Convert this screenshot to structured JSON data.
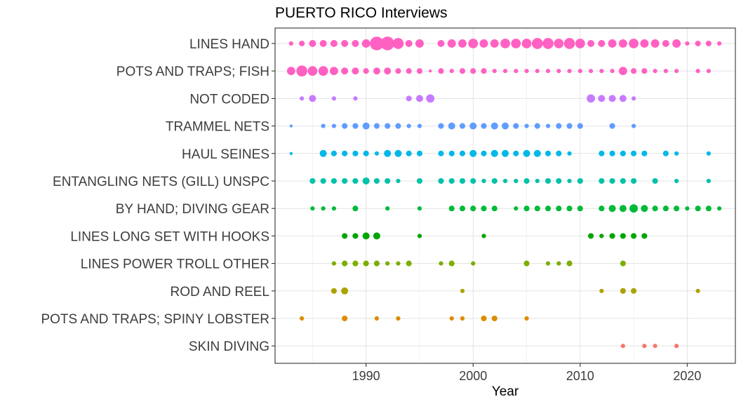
{
  "chart_data": {
    "type": "scatter",
    "title": "PUERTO RICO Interviews",
    "xlabel": "Year",
    "ylabel": "",
    "xlim": [
      1981.5,
      2024.5
    ],
    "xticks": [
      1990,
      2000,
      2010,
      2020
    ],
    "grid": true,
    "legend": "none",
    "categories": [
      "LINES HAND",
      "POTS AND TRAPS; FISH",
      "NOT CODED",
      "TRAMMEL NETS",
      "HAUL SEINES",
      "ENTANGLING NETS (GILL) UNSPC",
      "BY HAND; DIVING GEAR",
      "LINES LONG SET WITH HOOKS",
      "LINES POWER TROLL OTHER",
      "ROD AND REEL",
      "POTS AND TRAPS; SPINY LOBSTER",
      "SKIN DIVING"
    ],
    "series": [
      {
        "category": "LINES HAND",
        "color": "#FF61C3",
        "points": [
          [
            1983,
            2
          ],
          [
            1984,
            3
          ],
          [
            1985,
            4
          ],
          [
            1986,
            4
          ],
          [
            1987,
            4
          ],
          [
            1988,
            4
          ],
          [
            1989,
            4
          ],
          [
            1990,
            5
          ],
          [
            1991,
            9
          ],
          [
            1992,
            9
          ],
          [
            1993,
            7
          ],
          [
            1994,
            4
          ],
          [
            1995,
            5
          ],
          [
            1997,
            4
          ],
          [
            1998,
            5
          ],
          [
            1999,
            5
          ],
          [
            2000,
            6
          ],
          [
            2001,
            5
          ],
          [
            2002,
            5
          ],
          [
            2003,
            6
          ],
          [
            2004,
            6
          ],
          [
            2005,
            6
          ],
          [
            2006,
            7
          ],
          [
            2007,
            7
          ],
          [
            2008,
            6
          ],
          [
            2009,
            7
          ],
          [
            2010,
            6
          ],
          [
            2011,
            4
          ],
          [
            2012,
            4
          ],
          [
            2013,
            5
          ],
          [
            2014,
            5
          ],
          [
            2015,
            6
          ],
          [
            2016,
            5
          ],
          [
            2017,
            5
          ],
          [
            2018,
            4
          ],
          [
            2019,
            5
          ],
          [
            2020,
            2
          ],
          [
            2021,
            3
          ],
          [
            2022,
            3
          ],
          [
            2023,
            2
          ]
        ]
      },
      {
        "category": "POTS AND TRAPS; FISH",
        "color": "#FF61C3",
        "points": [
          [
            1983,
            5
          ],
          [
            1984,
            7
          ],
          [
            1985,
            6
          ],
          [
            1986,
            6
          ],
          [
            1987,
            5
          ],
          [
            1988,
            4
          ],
          [
            1989,
            4
          ],
          [
            1990,
            3
          ],
          [
            1991,
            4
          ],
          [
            1992,
            4
          ],
          [
            1993,
            3
          ],
          [
            1994,
            3
          ],
          [
            1995,
            3
          ],
          [
            1996,
            1
          ],
          [
            1997,
            3
          ],
          [
            1998,
            2
          ],
          [
            1999,
            3
          ],
          [
            2000,
            3
          ],
          [
            2001,
            3
          ],
          [
            2002,
            2
          ],
          [
            2003,
            2
          ],
          [
            2004,
            2
          ],
          [
            2005,
            2
          ],
          [
            2006,
            2
          ],
          [
            2007,
            2
          ],
          [
            2008,
            2
          ],
          [
            2009,
            2
          ],
          [
            2010,
            2
          ],
          [
            2011,
            2
          ],
          [
            2012,
            2
          ],
          [
            2013,
            2
          ],
          [
            2014,
            5
          ],
          [
            2015,
            3
          ],
          [
            2016,
            3
          ],
          [
            2017,
            2
          ],
          [
            2018,
            2
          ],
          [
            2019,
            2
          ],
          [
            2021,
            2
          ],
          [
            2022,
            2
          ]
        ]
      },
      {
        "category": "NOT CODED",
        "color": "#C77CFF",
        "points": [
          [
            1984,
            2
          ],
          [
            1985,
            4
          ],
          [
            1987,
            2
          ],
          [
            1989,
            2
          ],
          [
            1994,
            3
          ],
          [
            1995,
            4
          ],
          [
            1996,
            5
          ],
          [
            2011,
            5
          ],
          [
            2012,
            4
          ],
          [
            2013,
            4
          ],
          [
            2014,
            4
          ],
          [
            2015,
            2
          ]
        ]
      },
      {
        "category": "TRAMMEL NETS",
        "color": "#619CFF",
        "points": [
          [
            1983,
            1
          ],
          [
            1986,
            2
          ],
          [
            1987,
            2
          ],
          [
            1988,
            3
          ],
          [
            1989,
            3
          ],
          [
            1990,
            4
          ],
          [
            1991,
            3
          ],
          [
            1992,
            3
          ],
          [
            1993,
            3
          ],
          [
            1994,
            2
          ],
          [
            1995,
            2
          ],
          [
            1997,
            3
          ],
          [
            1998,
            4
          ],
          [
            1999,
            3
          ],
          [
            2000,
            4
          ],
          [
            2001,
            3
          ],
          [
            2002,
            4
          ],
          [
            2003,
            4
          ],
          [
            2004,
            3
          ],
          [
            2005,
            2
          ],
          [
            2006,
            3
          ],
          [
            2007,
            2
          ],
          [
            2008,
            3
          ],
          [
            2009,
            3
          ],
          [
            2010,
            3
          ],
          [
            2013,
            3
          ],
          [
            2015,
            2
          ]
        ]
      },
      {
        "category": "HAUL SEINES",
        "color": "#00B8E7",
        "points": [
          [
            1983,
            1
          ],
          [
            1986,
            4
          ],
          [
            1987,
            3
          ],
          [
            1988,
            3
          ],
          [
            1989,
            3
          ],
          [
            1990,
            3
          ],
          [
            1991,
            2
          ],
          [
            1992,
            4
          ],
          [
            1993,
            4
          ],
          [
            1994,
            3
          ],
          [
            1995,
            3
          ],
          [
            1997,
            3
          ],
          [
            1998,
            3
          ],
          [
            1999,
            3
          ],
          [
            2000,
            4
          ],
          [
            2001,
            3
          ],
          [
            2002,
            4
          ],
          [
            2003,
            4
          ],
          [
            2004,
            3
          ],
          [
            2005,
            4
          ],
          [
            2006,
            4
          ],
          [
            2007,
            3
          ],
          [
            2008,
            3
          ],
          [
            2009,
            2
          ],
          [
            2012,
            3
          ],
          [
            2013,
            3
          ],
          [
            2014,
            3
          ],
          [
            2015,
            3
          ],
          [
            2016,
            3
          ],
          [
            2018,
            3
          ],
          [
            2019,
            2
          ],
          [
            2022,
            2
          ]
        ]
      },
      {
        "category": "ENTANGLING NETS (GILL) UNSPC",
        "color": "#00C1A9",
        "points": [
          [
            1985,
            3
          ],
          [
            1986,
            3
          ],
          [
            1987,
            3
          ],
          [
            1988,
            3
          ],
          [
            1989,
            3
          ],
          [
            1990,
            4
          ],
          [
            1991,
            3
          ],
          [
            1992,
            3
          ],
          [
            1993,
            2
          ],
          [
            1995,
            3
          ],
          [
            1997,
            3
          ],
          [
            1998,
            3
          ],
          [
            1999,
            3
          ],
          [
            2000,
            3
          ],
          [
            2001,
            2
          ],
          [
            2002,
            3
          ],
          [
            2003,
            2
          ],
          [
            2004,
            2
          ],
          [
            2005,
            3
          ],
          [
            2006,
            2
          ],
          [
            2007,
            3
          ],
          [
            2008,
            3
          ],
          [
            2009,
            2
          ],
          [
            2010,
            3
          ],
          [
            2012,
            3
          ],
          [
            2013,
            3
          ],
          [
            2014,
            3
          ],
          [
            2015,
            3
          ],
          [
            2017,
            3
          ],
          [
            2019,
            2
          ],
          [
            2022,
            2
          ]
        ]
      },
      {
        "category": "BY HAND; DIVING GEAR",
        "color": "#00BA38",
        "points": [
          [
            1985,
            2
          ],
          [
            1986,
            2
          ],
          [
            1987,
            2
          ],
          [
            1989,
            3
          ],
          [
            1992,
            2
          ],
          [
            1995,
            2
          ],
          [
            1998,
            3
          ],
          [
            1999,
            3
          ],
          [
            2000,
            3
          ],
          [
            2001,
            3
          ],
          [
            2002,
            3
          ],
          [
            2004,
            2
          ],
          [
            2005,
            3
          ],
          [
            2006,
            3
          ],
          [
            2007,
            3
          ],
          [
            2008,
            3
          ],
          [
            2009,
            3
          ],
          [
            2010,
            3
          ],
          [
            2012,
            3
          ],
          [
            2013,
            4
          ],
          [
            2014,
            4
          ],
          [
            2015,
            5
          ],
          [
            2016,
            4
          ],
          [
            2017,
            3
          ],
          [
            2018,
            3
          ],
          [
            2019,
            3
          ],
          [
            2020,
            2
          ],
          [
            2021,
            3
          ],
          [
            2022,
            3
          ],
          [
            2023,
            2
          ]
        ]
      },
      {
        "category": "LINES LONG SET WITH HOOKS",
        "color": "#00A600",
        "points": [
          [
            1988,
            3
          ],
          [
            1989,
            3
          ],
          [
            1990,
            4
          ],
          [
            1991,
            4
          ],
          [
            1995,
            2
          ],
          [
            2001,
            2
          ],
          [
            2011,
            3
          ],
          [
            2012,
            2
          ],
          [
            2013,
            3
          ],
          [
            2014,
            3
          ],
          [
            2015,
            3
          ],
          [
            2016,
            3
          ]
        ]
      },
      {
        "category": "LINES POWER TROLL OTHER",
        "color": "#7CAE00",
        "points": [
          [
            1987,
            2
          ],
          [
            1988,
            3
          ],
          [
            1989,
            3
          ],
          [
            1990,
            3
          ],
          [
            1991,
            3
          ],
          [
            1992,
            2
          ],
          [
            1993,
            2
          ],
          [
            1994,
            3
          ],
          [
            1997,
            2
          ],
          [
            1998,
            3
          ],
          [
            2000,
            2
          ],
          [
            2005,
            3
          ],
          [
            2007,
            2
          ],
          [
            2008,
            2
          ],
          [
            2009,
            3
          ],
          [
            2014,
            3
          ]
        ]
      },
      {
        "category": "ROD AND REEL",
        "color": "#ABA300",
        "points": [
          [
            1987,
            3
          ],
          [
            1988,
            4
          ],
          [
            1999,
            2
          ],
          [
            2012,
            2
          ],
          [
            2014,
            3
          ],
          [
            2015,
            3
          ],
          [
            2021,
            2
          ]
        ]
      },
      {
        "category": "POTS AND TRAPS; SPINY LOBSTER",
        "color": "#DE8C00",
        "points": [
          [
            1984,
            2
          ],
          [
            1988,
            3
          ],
          [
            1991,
            2
          ],
          [
            1993,
            2
          ],
          [
            1998,
            2
          ],
          [
            1999,
            2
          ],
          [
            2001,
            3
          ],
          [
            2002,
            3
          ],
          [
            2005,
            2
          ]
        ]
      },
      {
        "category": "SKIN DIVING",
        "color": "#F8766D",
        "points": [
          [
            2014,
            2
          ],
          [
            2016,
            2
          ],
          [
            2017,
            2
          ],
          [
            2019,
            2
          ]
        ]
      }
    ]
  }
}
